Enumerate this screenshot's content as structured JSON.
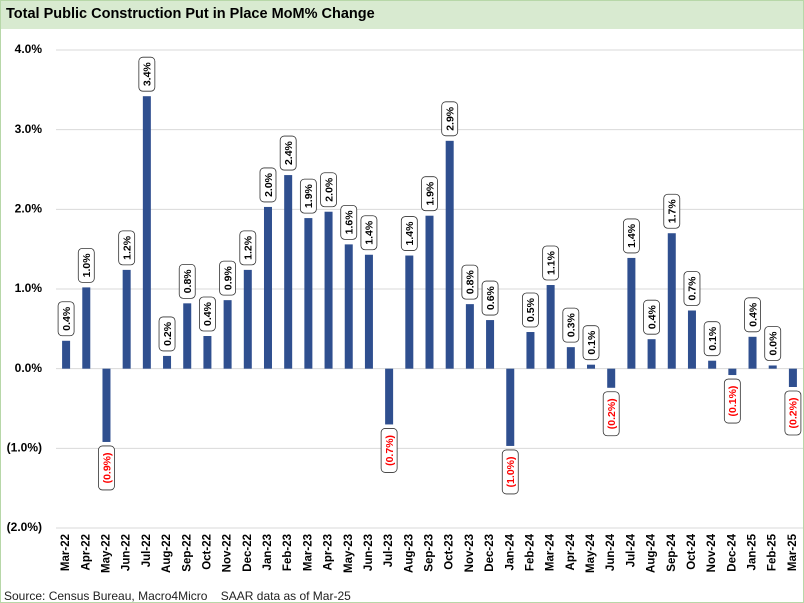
{
  "chart_data": {
    "type": "bar",
    "title": "Total Public Construction Put in Place MoM% Change",
    "source": "Source: Census Bureau, Macro4Micro    SAAR data as of Mar-25",
    "categories": [
      "Mar-22",
      "Apr-22",
      "May-22",
      "Jun-22",
      "Jul-22",
      "Aug-22",
      "Sep-22",
      "Oct-22",
      "Nov-22",
      "Dec-22",
      "Jan-23",
      "Feb-23",
      "Mar-23",
      "Apr-23",
      "May-23",
      "Jun-23",
      "Jul-23",
      "Aug-23",
      "Sep-23",
      "Oct-23",
      "Nov-23",
      "Dec-23",
      "Jan-24",
      "Feb-24",
      "Mar-24",
      "Apr-24",
      "May-24",
      "Jun-24",
      "Jul-24",
      "Aug-24",
      "Sep-24",
      "Oct-24",
      "Nov-24",
      "Dec-24",
      "Jan-25",
      "Feb-25",
      "Mar-25"
    ],
    "values": [
      0.35,
      1.02,
      -0.92,
      1.24,
      3.42,
      0.16,
      0.82,
      0.41,
      0.86,
      1.24,
      2.03,
      2.43,
      1.89,
      1.97,
      1.56,
      1.43,
      -0.7,
      1.42,
      1.92,
      2.86,
      0.81,
      0.61,
      -0.97,
      0.46,
      1.05,
      0.27,
      0.05,
      -0.24,
      1.39,
      0.37,
      1.7,
      0.73,
      0.1,
      -0.08,
      0.4,
      0.04,
      -0.23
    ],
    "value_labels": [
      "0.4%",
      "1.0%",
      "(0.9%)",
      "1.2%",
      "3.4%",
      "0.2%",
      "0.8%",
      "0.4%",
      "0.9%",
      "1.2%",
      "2.0%",
      "2.4%",
      "1.9%",
      "2.0%",
      "1.6%",
      "1.4%",
      "(0.7%)",
      "1.4%",
      "1.9%",
      "2.9%",
      "0.8%",
      "0.6%",
      "(1.0%)",
      "0.5%",
      "1.1%",
      "0.3%",
      "0.1%",
      "(0.2%)",
      "1.4%",
      "0.4%",
      "1.7%",
      "0.7%",
      "0.1%",
      "(0.1%)",
      "0.4%",
      "0.0%",
      "(0.2%)"
    ],
    "color": "#2f4f8f",
    "negative_label_color": "#ff0000",
    "ylim": [
      -2,
      4
    ],
    "yticks": [
      {
        "value": -2,
        "label": "(2.0%)"
      },
      {
        "value": -1,
        "label": "(1.0%)"
      },
      {
        "value": 0,
        "label": "0.0%"
      },
      {
        "value": 1,
        "label": "1.0%"
      },
      {
        "value": 2,
        "label": "2.0%"
      },
      {
        "value": 3,
        "label": "3.0%"
      },
      {
        "value": 4,
        "label": "4.0%"
      }
    ],
    "grid": true
  }
}
